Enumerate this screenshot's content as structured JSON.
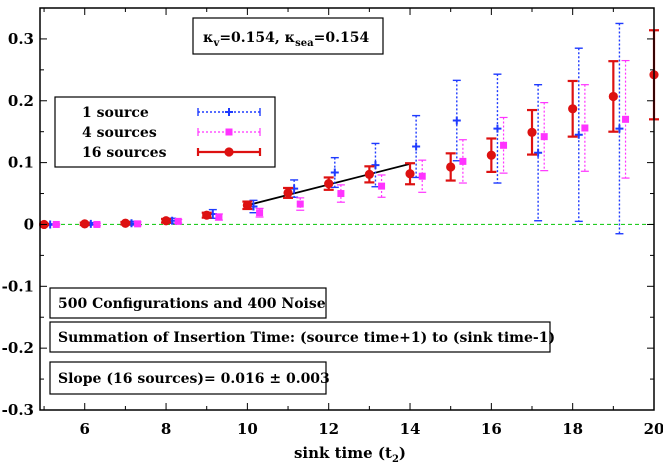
{
  "chart_data": {
    "type": "scatter",
    "title": "",
    "xlabel": "sink time",
    "xlabel_sub": "2",
    "ylabel": "",
    "xlim": [
      4.9,
      20
    ],
    "ylim": [
      -0.3,
      0.35
    ],
    "xticks": [
      6,
      8,
      10,
      12,
      14,
      16,
      18,
      20
    ],
    "yticks": [
      -0.3,
      -0.2,
      -0.1,
      0,
      0.1,
      0.2,
      0.3
    ],
    "ytick_labels": [
      "-0.3",
      "-0.2",
      "-0.1",
      "0",
      "0.1",
      "0.2",
      "0.3"
    ],
    "grid": false,
    "legend_position": "top-left",
    "kappa_box": {
      "kappa_symbol": "κ",
      "v_sub": "v",
      "v_value": "=0.154,",
      "sea_sub": "sea",
      "sea_value": "=0.154"
    },
    "annotations": [
      "500 Configurations and 400 Noise",
      "Summation of Insertion Time: (source time+1) to (sink time-1)",
      "Slope (16 sources)= 0.016 ± 0.003"
    ],
    "zero_line": {
      "y": 0,
      "color": "#22cc22"
    },
    "fit_line": {
      "x": [
        10,
        14
      ],
      "y": [
        0.031,
        0.098
      ],
      "color": "#000000"
    },
    "series": [
      {
        "name": "1 source",
        "color": "#1f3bff",
        "marker": "plus",
        "x_offset": 0.15,
        "points": [
          {
            "x": 5,
            "y": 0.0,
            "err": 0.001
          },
          {
            "x": 6,
            "y": 0.001,
            "err": 0.002
          },
          {
            "x": 7,
            "y": 0.002,
            "err": 0.003
          },
          {
            "x": 8,
            "y": 0.006,
            "err": 0.004
          },
          {
            "x": 9,
            "y": 0.017,
            "err": 0.007
          },
          {
            "x": 10,
            "y": 0.029,
            "err": 0.01
          },
          {
            "x": 11,
            "y": 0.058,
            "err": 0.014
          },
          {
            "x": 12,
            "y": 0.084,
            "err": 0.024
          },
          {
            "x": 13,
            "y": 0.096,
            "err": 0.035
          },
          {
            "x": 14,
            "y": 0.126,
            "err": 0.05
          },
          {
            "x": 15,
            "y": 0.168,
            "err": 0.065
          },
          {
            "x": 16,
            "y": 0.155,
            "err": 0.088
          },
          {
            "x": 17,
            "y": 0.116,
            "err": 0.11
          },
          {
            "x": 18,
            "y": 0.145,
            "err": 0.14
          },
          {
            "x": 19,
            "y": 0.155,
            "err": 0.17
          }
        ]
      },
      {
        "name": "4 sources",
        "color": "#ff33ff",
        "marker": "square",
        "x_offset": 0.3,
        "points": [
          {
            "x": 5,
            "y": 0.0,
            "err": 0.001
          },
          {
            "x": 6,
            "y": 0.0,
            "err": 0.002
          },
          {
            "x": 7,
            "y": 0.001,
            "err": 0.003
          },
          {
            "x": 8,
            "y": 0.005,
            "err": 0.003
          },
          {
            "x": 9,
            "y": 0.012,
            "err": 0.005
          },
          {
            "x": 10,
            "y": 0.019,
            "err": 0.007
          },
          {
            "x": 11,
            "y": 0.033,
            "err": 0.01
          },
          {
            "x": 12,
            "y": 0.05,
            "err": 0.014
          },
          {
            "x": 13,
            "y": 0.062,
            "err": 0.018
          },
          {
            "x": 14,
            "y": 0.078,
            "err": 0.026
          },
          {
            "x": 15,
            "y": 0.102,
            "err": 0.035
          },
          {
            "x": 16,
            "y": 0.128,
            "err": 0.045
          },
          {
            "x": 17,
            "y": 0.142,
            "err": 0.055
          },
          {
            "x": 18,
            "y": 0.156,
            "err": 0.07
          },
          {
            "x": 19,
            "y": 0.17,
            "err": 0.095
          }
        ]
      },
      {
        "name": "16 sources",
        "color": "#dd1111",
        "marker": "circle",
        "x_offset": 0,
        "points": [
          {
            "x": 5,
            "y": 0.0,
            "err": 0.001
          },
          {
            "x": 6,
            "y": 0.001,
            "err": 0.002
          },
          {
            "x": 7,
            "y": 0.002,
            "err": 0.002
          },
          {
            "x": 8,
            "y": 0.006,
            "err": 0.003
          },
          {
            "x": 9,
            "y": 0.015,
            "err": 0.004
          },
          {
            "x": 10,
            "y": 0.031,
            "err": 0.006
          },
          {
            "x": 11,
            "y": 0.051,
            "err": 0.008
          },
          {
            "x": 12,
            "y": 0.066,
            "err": 0.01
          },
          {
            "x": 13,
            "y": 0.081,
            "err": 0.013
          },
          {
            "x": 14,
            "y": 0.082,
            "err": 0.017
          },
          {
            "x": 15,
            "y": 0.093,
            "err": 0.022
          },
          {
            "x": 16,
            "y": 0.112,
            "err": 0.027
          },
          {
            "x": 17,
            "y": 0.149,
            "err": 0.036
          },
          {
            "x": 18,
            "y": 0.187,
            "err": 0.045
          },
          {
            "x": 19,
            "y": 0.207,
            "err": 0.057
          },
          {
            "x": 20,
            "y": 0.242,
            "err": 0.072
          }
        ]
      }
    ]
  }
}
